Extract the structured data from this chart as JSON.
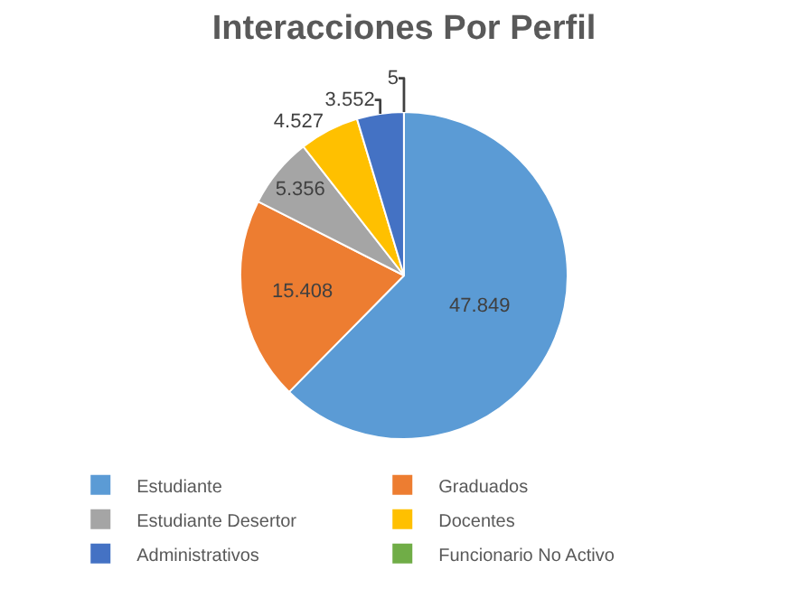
{
  "chart_data": {
    "type": "pie",
    "title": "Interacciones Por Perfil",
    "categories": [
      "Estudiante",
      "Graduados",
      "Estudiante Desertor",
      "Docentes",
      "Administrativos",
      "Funcionario No Activo"
    ],
    "values": [
      47849,
      15408,
      5356,
      4527,
      3552,
      5
    ],
    "value_labels": [
      "47.849",
      "15.408",
      "5.356",
      "4.527",
      "3.552",
      "5"
    ],
    "colors": [
      "#5b9bd5",
      "#ed7d31",
      "#a5a5a5",
      "#ffc000",
      "#4472c4",
      "#70ad47"
    ],
    "legend": "bottom"
  }
}
